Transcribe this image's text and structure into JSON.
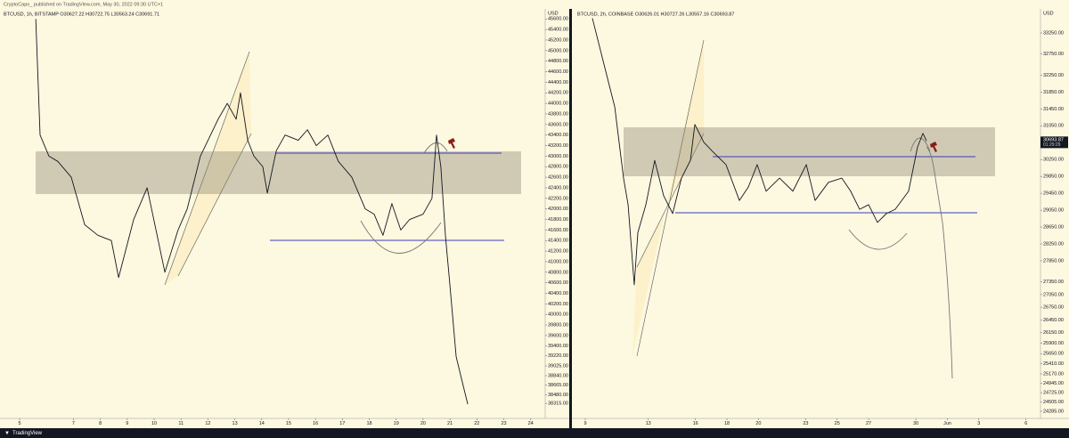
{
  "header": {
    "text": "CryptoCapo_ published on TradingView.com, May 30, 2022 09:30 UTC+1"
  },
  "footer": {
    "brand": "TradingView"
  },
  "chart_data": [
    {
      "type": "line",
      "title": "BTCUSD, 1h, BITSTAMP  O30627.22  H30722.75  L30563.24  C30691.71",
      "unit": "USD",
      "color": "#131722",
      "grid": false,
      "x": [
        5.6,
        5.76,
        6.09,
        6.42,
        6.92,
        7.42,
        7.91,
        8.41,
        8.68,
        9.24,
        9.74,
        10.4,
        10.89,
        11.23,
        11.72,
        12.38,
        12.72,
        13.05,
        13.21,
        13.48,
        13.71,
        14.04,
        14.21,
        14.54,
        14.87,
        15.36,
        15.7,
        16.03,
        16.46,
        16.85,
        17.35,
        17.85,
        18.18,
        18.51,
        18.84,
        19.17,
        19.5,
        20.0,
        20.33,
        20.5,
        20.66,
        20.83,
        20.99,
        21.23,
        21.42,
        21.66
      ],
      "values": [
        45600,
        43400,
        43000,
        42900,
        42600,
        41700,
        41500,
        41400,
        40700,
        41800,
        42400,
        40800,
        41600,
        42000,
        43000,
        43700,
        44000,
        43700,
        44200,
        43300,
        43000,
        42800,
        42300,
        43100,
        43400,
        43300,
        43500,
        43200,
        43400,
        42900,
        42600,
        42000,
        41900,
        41500,
        42100,
        41600,
        41800,
        41900,
        42200,
        43400,
        42800,
        41500,
        40600,
        39200,
        38800,
        38300
      ],
      "xlim": [
        4.27,
        24.54
      ],
      "xticks": [
        5,
        7,
        8,
        9,
        10,
        11,
        12,
        13,
        14,
        15,
        16,
        17,
        18,
        19,
        20,
        21,
        22,
        23,
        24
      ],
      "ylim": [
        38030,
        45790
      ],
      "yticks": [
        {
          "value": 45600,
          "label": "45600.00"
        },
        {
          "value": 45400,
          "label": "45400.00"
        },
        {
          "value": 45200,
          "label": "45200.00"
        },
        {
          "value": 45000,
          "label": "45000.00"
        },
        {
          "value": 44800,
          "label": "44800.00"
        },
        {
          "value": 44600,
          "label": "44600.00"
        },
        {
          "value": 44400,
          "label": "44400.00"
        },
        {
          "value": 44200,
          "label": "44200.00"
        },
        {
          "value": 44000,
          "label": "44000.00"
        },
        {
          "value": 43800,
          "label": "43800.00"
        },
        {
          "value": 43600,
          "label": "43600.00"
        },
        {
          "value": 43400,
          "label": "43400.00"
        },
        {
          "value": 43200,
          "label": "43200.00"
        },
        {
          "value": 43000,
          "label": "43000.00"
        },
        {
          "value": 42800,
          "label": "42800.00"
        },
        {
          "value": 42600,
          "label": "42600.00"
        },
        {
          "value": 42400,
          "label": "42400.00"
        },
        {
          "value": 42200,
          "label": "42200.00"
        },
        {
          "value": 42000,
          "label": "42000.00"
        },
        {
          "value": 41800,
          "label": "41800.00"
        },
        {
          "value": 41600,
          "label": "41600.00"
        },
        {
          "value": 41400,
          "label": "41400.00"
        },
        {
          "value": 41200,
          "label": "41200.00"
        },
        {
          "value": 41000,
          "label": "41000.00"
        },
        {
          "value": 40800,
          "label": "40800.00"
        },
        {
          "value": 40600,
          "label": "40600.00"
        },
        {
          "value": 40400,
          "label": "40400.00"
        },
        {
          "value": 40200,
          "label": "40200.00"
        },
        {
          "value": 40000,
          "label": "40000.00"
        },
        {
          "value": 39800,
          "label": "39800.00"
        },
        {
          "value": 39600,
          "label": "39600.00"
        },
        {
          "value": 39400,
          "label": "39400.00"
        },
        {
          "value": 39220,
          "label": "39220.00"
        },
        {
          "value": 39025,
          "label": "39025.00"
        },
        {
          "value": 38840,
          "label": "38840.00"
        },
        {
          "value": 38665,
          "label": "38665.00"
        },
        {
          "value": 38480,
          "label": "38480.00"
        },
        {
          "value": 38315,
          "label": "38315.00"
        }
      ]
    },
    {
      "type": "line",
      "title": "BTCUSD, 2h, COINBASE  O30626.01  H30727.26  L30557.16  C30693.87",
      "unit": "USD",
      "color": "#131722",
      "grid": false,
      "price_tag": "30693.87",
      "countdown": "01:29:29",
      "x": [
        9.45,
        10.3,
        10.87,
        11.43,
        11.72,
        12.11,
        12.34,
        12.85,
        13.41,
        13.98,
        14.55,
        15.11,
        15.68,
        15.96,
        16.53,
        17.09,
        17.94,
        18.79,
        19.36,
        19.92,
        20.49,
        21.34,
        22.19,
        23.04,
        23.6,
        24.45,
        25.3,
        25.86,
        26.43,
        27.0,
        27.56,
        28.13,
        28.69,
        29.54,
        30.11,
        30.45,
        30.68
      ],
      "values": [
        33600,
        32340,
        31500,
        29810,
        29180,
        27280,
        28520,
        29180,
        30230,
        29390,
        28970,
        29810,
        30230,
        31080,
        30660,
        30440,
        30130,
        29280,
        29600,
        30130,
        29500,
        29810,
        29500,
        30130,
        29280,
        29710,
        29810,
        29500,
        29070,
        29180,
        28760,
        28970,
        29070,
        29500,
        30550,
        30870,
        30690
      ],
      "xlim": [
        8.32,
        37.92
      ],
      "xticks": [
        9,
        13,
        16,
        18,
        20,
        23,
        25,
        27,
        30,
        {
          "value": 32,
          "label": "Jun"
        },
        {
          "value": 34,
          "label": "3"
        },
        {
          "value": 37,
          "label": "6"
        }
      ],
      "ylim": [
        24115,
        33820
      ],
      "yticks": [
        {
          "value": 33250,
          "label": "33250.00"
        },
        {
          "value": 32750,
          "label": "32750.00"
        },
        {
          "value": 32250,
          "label": "32250.00"
        },
        {
          "value": 31850,
          "label": "31850.00"
        },
        {
          "value": 31450,
          "label": "31450.00"
        },
        {
          "value": 31050,
          "label": "31050.00"
        },
        {
          "value": 30250,
          "label": "30250.00"
        },
        {
          "value": 29850,
          "label": "29850.00"
        },
        {
          "value": 29450,
          "label": "29450.00"
        },
        {
          "value": 29050,
          "label": "29050.00"
        },
        {
          "value": 28650,
          "label": "28650.00"
        },
        {
          "value": 28250,
          "label": "28250.00"
        },
        {
          "value": 27850,
          "label": "27850.00"
        },
        {
          "value": 27350,
          "label": "27350.00"
        },
        {
          "value": 27050,
          "label": "27050.00"
        },
        {
          "value": 26750,
          "label": "26750.00"
        },
        {
          "value": 26450,
          "label": "26450.00"
        },
        {
          "value": 26150,
          "label": "26150.00"
        },
        {
          "value": 25900,
          "label": "25900.00"
        },
        {
          "value": 25650,
          "label": "25650.00"
        },
        {
          "value": 25410,
          "label": "25410.00"
        },
        {
          "value": 25170,
          "label": "25170.00"
        },
        {
          "value": 24945,
          "label": "24945.00"
        },
        {
          "value": 24725,
          "label": "24725.00"
        },
        {
          "value": 24505,
          "label": "24505.00"
        },
        {
          "value": 24285,
          "label": "24285.00"
        }
      ]
    }
  ]
}
